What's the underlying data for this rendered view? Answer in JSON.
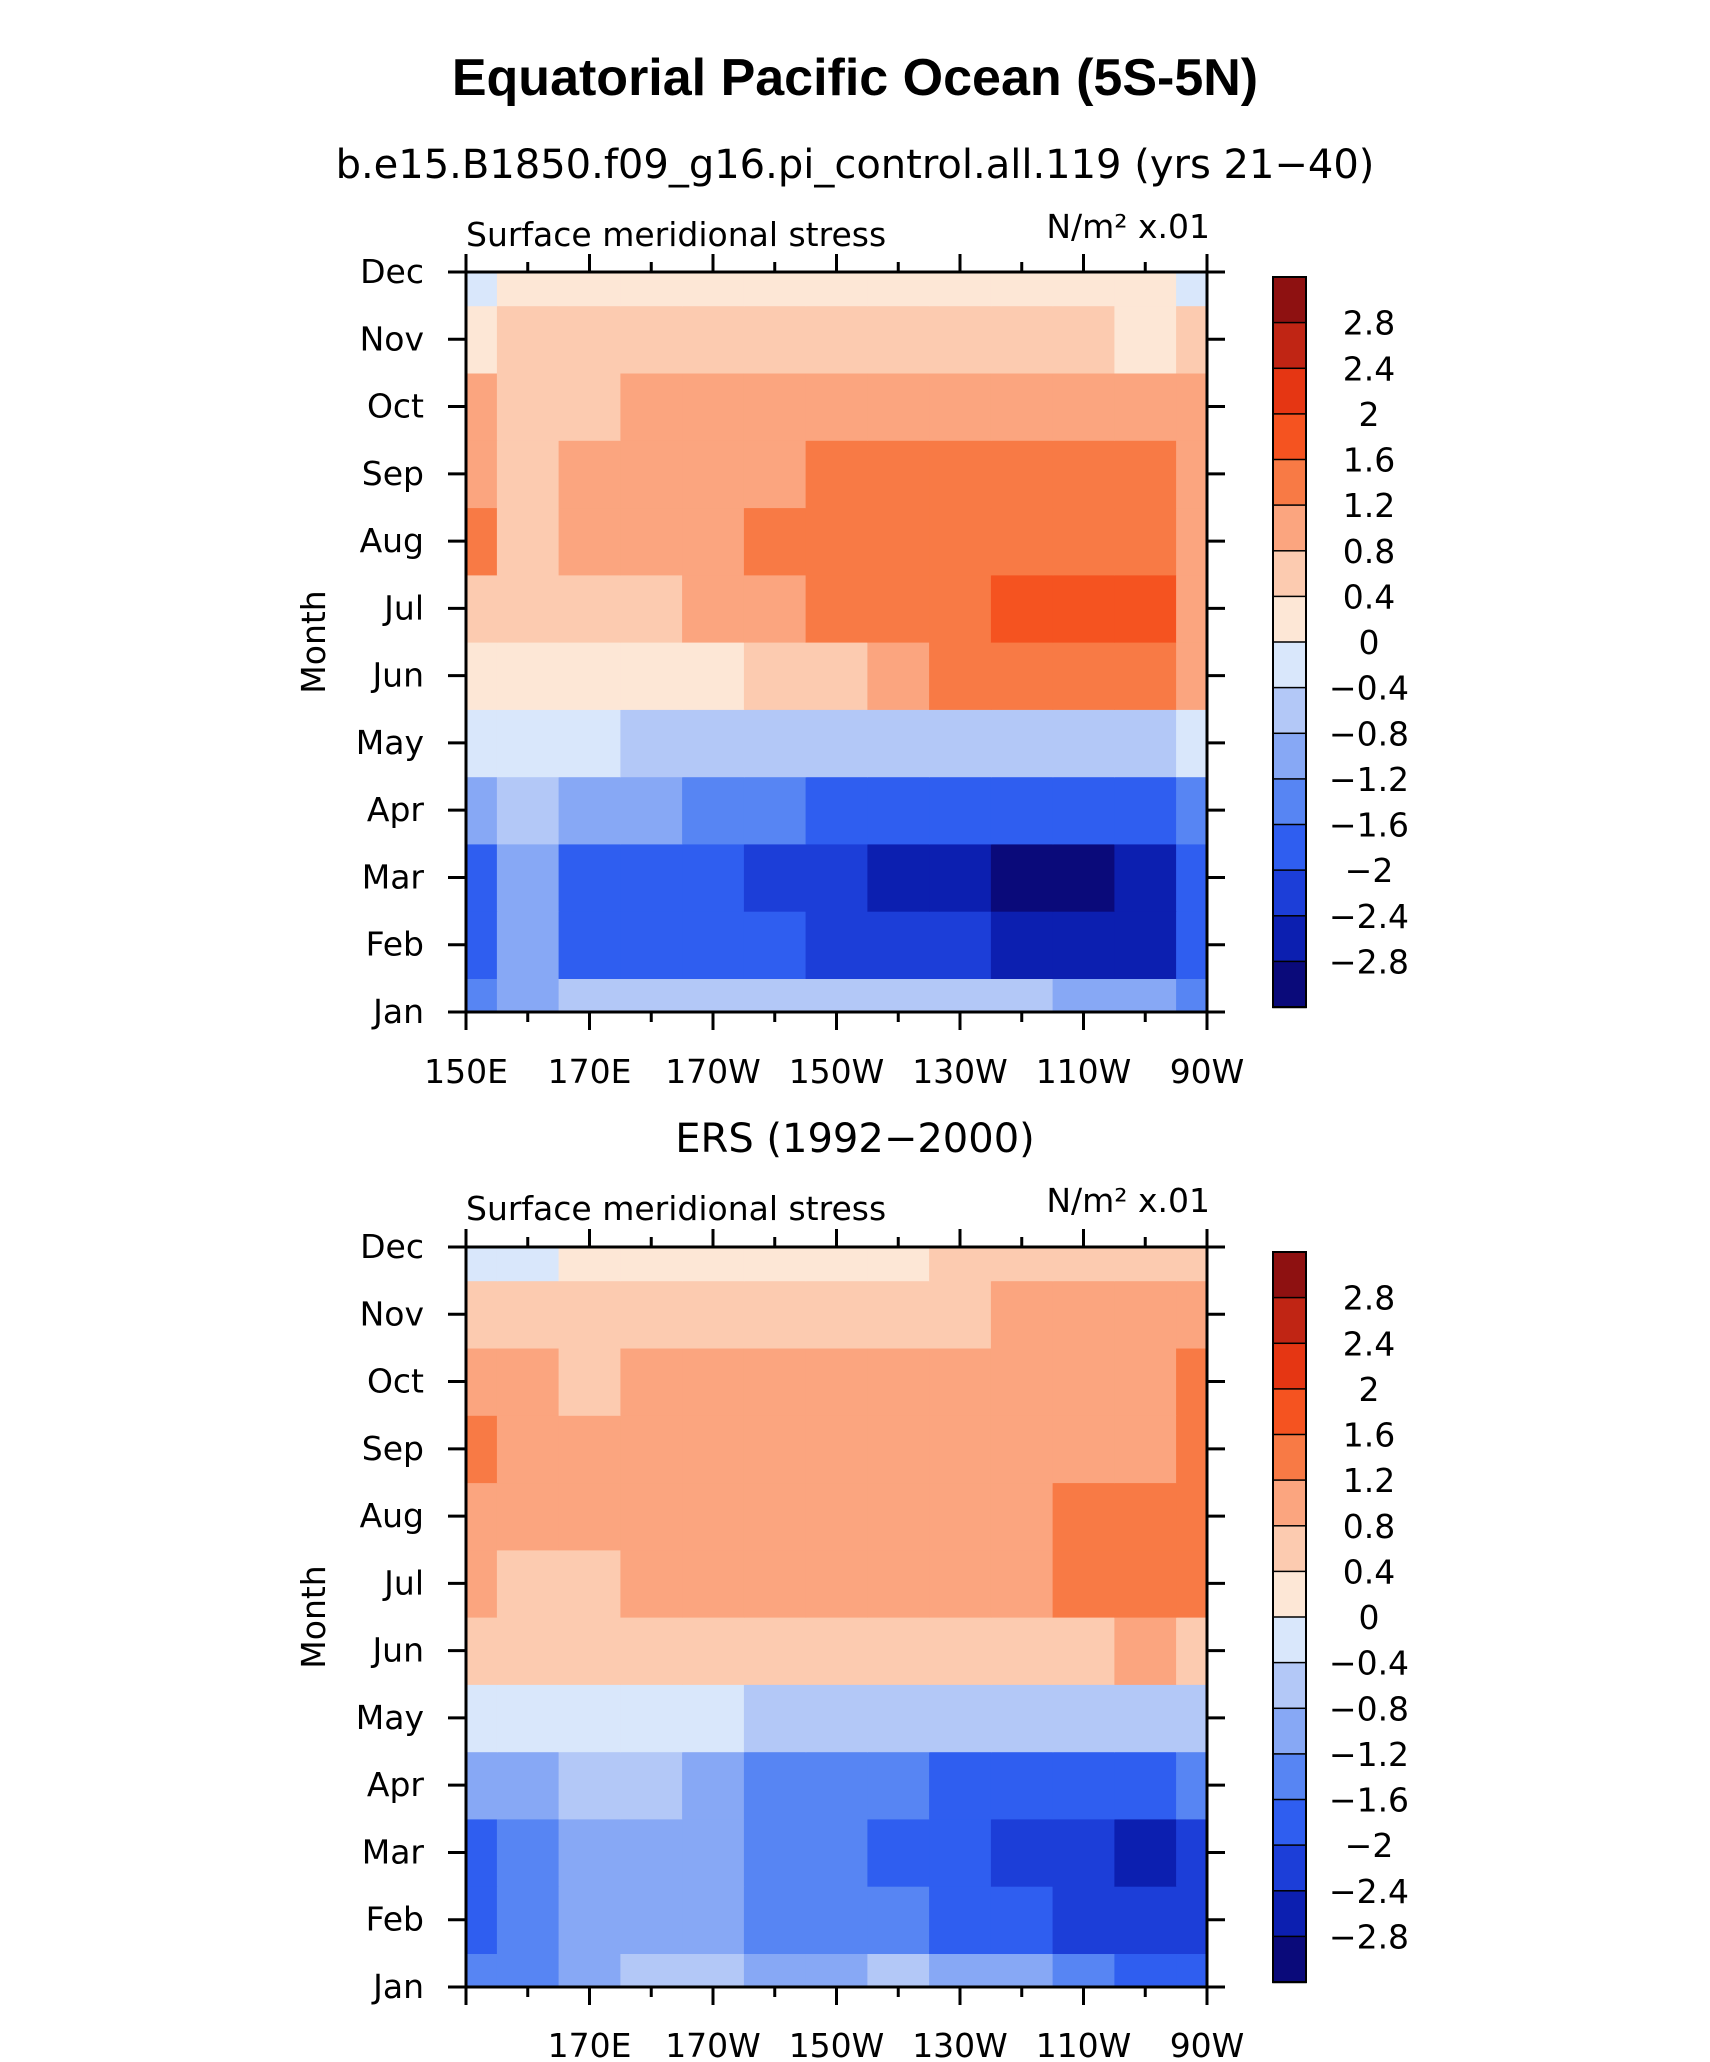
{
  "figure": {
    "title": "Equatorial Pacific Ocean (5S-5N)",
    "level_colors": [
      "#0a0a7a",
      "#0c1fb0",
      "#1c3ed8",
      "#2f5ef0",
      "#5785f3",
      "#87a8f5",
      "#b3c8f7",
      "#d9e7fb",
      "#fde7d6",
      "#fccbb0",
      "#fba57f",
      "#f87a45",
      "#f55320",
      "#e53613",
      "#c02514",
      "#8e1111"
    ],
    "colorbar_labels": [
      "2.8",
      "2.4",
      "2",
      "1.6",
      "1.2",
      "0.8",
      "0.4",
      "0",
      "−0.4",
      "−0.8",
      "−1.2",
      "−1.6",
      "−2",
      "−2.4",
      "−2.8"
    ]
  },
  "chart_data": [
    {
      "type": "heatmap",
      "title": "b.e15.B1850.f09_g16.pi_control.all.119 (yrs 21−40)",
      "left_label": "Surface meridional stress",
      "units_label": "N/m² x.01",
      "ylabel": "Month",
      "x_tick_labels": [
        "150E",
        "170E",
        "170W",
        "150W",
        "130W",
        "110W",
        "90W"
      ],
      "y_tick_labels": [
        "Jan",
        "Feb",
        "Mar",
        "Apr",
        "May",
        "Jun",
        "Jul",
        "Aug",
        "Sep",
        "Oct",
        "Nov",
        "Dec"
      ],
      "levels": [
        -2.8,
        -2.4,
        -2.0,
        -1.6,
        -1.2,
        -0.8,
        -0.4,
        0,
        0.4,
        0.8,
        1.2,
        1.6,
        2.0,
        2.4,
        2.8
      ],
      "x": [
        150,
        160,
        170,
        180,
        190,
        200,
        210,
        220,
        230,
        240,
        250,
        260,
        270
      ],
      "rows": [
        [
          -1.4,
          -0.9,
          -0.8,
          -0.7,
          -0.6,
          -0.6,
          -0.6,
          -0.6,
          -0.7,
          -0.8,
          -0.9,
          -1.0,
          -1.3
        ],
        [
          -1.7,
          -1.2,
          -1.7,
          -1.8,
          -1.9,
          -2.0,
          -2.1,
          -2.2,
          -2.4,
          -2.5,
          -2.6,
          -2.5,
          -1.7
        ],
        [
          -1.8,
          -1.2,
          -1.7,
          -1.8,
          -1.9,
          -2.1,
          -2.4,
          -2.6,
          -2.8,
          -3.0,
          -3.0,
          -2.6,
          -1.8
        ],
        [
          -1.0,
          -0.8,
          -0.9,
          -1.1,
          -1.3,
          -1.5,
          -1.7,
          -1.8,
          -1.9,
          -2.0,
          -1.9,
          -1.7,
          -1.3
        ],
        [
          -0.2,
          -0.3,
          -0.4,
          -0.5,
          -0.6,
          -0.7,
          -0.7,
          -0.7,
          -0.8,
          -0.7,
          -0.6,
          -0.5,
          -0.3
        ],
        [
          0.3,
          0.2,
          0.2,
          0.2,
          0.3,
          0.5,
          0.7,
          1.0,
          1.2,
          1.3,
          1.3,
          1.2,
          0.9
        ],
        [
          0.7,
          0.5,
          0.6,
          0.7,
          0.8,
          1.0,
          1.2,
          1.4,
          1.5,
          1.6,
          1.7,
          1.6,
          1.0
        ],
        [
          1.2,
          0.6,
          0.9,
          1.0,
          1.1,
          1.2,
          1.4,
          1.4,
          1.5,
          1.5,
          1.5,
          1.4,
          0.9
        ],
        [
          1.0,
          0.7,
          0.8,
          0.9,
          1.0,
          1.1,
          1.2,
          1.3,
          1.3,
          1.3,
          1.3,
          1.2,
          0.9
        ],
        [
          0.9,
          0.6,
          0.7,
          0.8,
          0.8,
          0.8,
          0.8,
          0.8,
          0.8,
          0.8,
          0.8,
          0.8,
          0.8
        ],
        [
          0.3,
          0.4,
          0.5,
          0.5,
          0.5,
          0.5,
          0.5,
          0.5,
          0.5,
          0.5,
          0.4,
          0.3,
          0.5
        ],
        [
          -0.1,
          0.2,
          0.3,
          0.3,
          0.3,
          0.3,
          0.3,
          0.3,
          0.3,
          0.3,
          0.2,
          0.1,
          -0.1
        ]
      ]
    },
    {
      "type": "heatmap",
      "title": "ERS (1992−2000)",
      "left_label": "Surface meridional stress",
      "units_label": "N/m² x.01",
      "ylabel": "Month",
      "x_tick_labels": [
        "170E",
        "170W",
        "150W",
        "130W",
        "110W",
        "90W"
      ],
      "y_tick_labels": [
        "Jan",
        "Feb",
        "Mar",
        "Apr",
        "May",
        "Jun",
        "Jul",
        "Aug",
        "Sep",
        "Oct",
        "Nov",
        "Dec"
      ],
      "levels": [
        -2.8,
        -2.4,
        -2.0,
        -1.6,
        -1.2,
        -0.8,
        -0.4,
        0,
        0.4,
        0.8,
        1.2,
        1.6,
        2.0,
        2.4,
        2.8
      ],
      "x": [
        150,
        160,
        170,
        180,
        190,
        200,
        210,
        220,
        230,
        240,
        250,
        260,
        270
      ],
      "rows": [
        [
          -1.5,
          -1.3,
          -1.0,
          -0.8,
          -0.8,
          -0.9,
          -0.9,
          -0.8,
          -1.0,
          -1.2,
          -1.5,
          -1.9,
          -2.0
        ],
        [
          -1.9,
          -1.5,
          -1.2,
          -1.1,
          -1.2,
          -1.3,
          -1.4,
          -1.5,
          -1.8,
          -2.0,
          -2.2,
          -2.4,
          -2.2
        ],
        [
          -2.0,
          -1.6,
          -1.2,
          -1.0,
          -1.1,
          -1.3,
          -1.4,
          -1.7,
          -2.0,
          -2.4,
          -2.2,
          -2.6,
          -2.3
        ],
        [
          -1.0,
          -0.9,
          -0.8,
          -0.8,
          -1.0,
          -1.3,
          -1.4,
          -1.6,
          -1.7,
          -1.7,
          -1.8,
          -1.8,
          -1.6
        ],
        [
          -0.4,
          -0.4,
          -0.3,
          -0.3,
          -0.4,
          -0.5,
          -0.5,
          -0.6,
          -0.6,
          -0.6,
          -0.7,
          -0.7,
          -0.5
        ],
        [
          0.5,
          0.4,
          0.4,
          0.5,
          0.5,
          0.6,
          0.5,
          0.5,
          0.4,
          0.4,
          0.6,
          0.8,
          0.6
        ],
        [
          0.8,
          0.7,
          0.7,
          0.8,
          0.9,
          1.0,
          0.9,
          0.9,
          0.8,
          0.9,
          1.2,
          1.4,
          1.3
        ],
        [
          1.0,
          0.9,
          0.8,
          0.9,
          1.0,
          1.0,
          1.0,
          1.0,
          1.0,
          1.0,
          1.2,
          1.3,
          1.3
        ],
        [
          1.3,
          1.0,
          0.8,
          0.9,
          1.1,
          1.1,
          1.0,
          1.0,
          0.9,
          0.8,
          0.9,
          1.0,
          1.3
        ],
        [
          0.9,
          0.8,
          0.7,
          0.8,
          0.9,
          1.0,
          0.9,
          0.9,
          0.8,
          0.8,
          0.8,
          0.9,
          1.3
        ],
        [
          0.6,
          0.5,
          0.5,
          0.6,
          0.6,
          0.6,
          0.5,
          0.5,
          0.6,
          0.8,
          0.9,
          0.8,
          1.0
        ],
        [
          -0.2,
          -0.1,
          0.0,
          0.1,
          0.1,
          0.2,
          0.2,
          0.2,
          0.4,
          0.6,
          0.6,
          0.5,
          0.4
        ]
      ]
    }
  ]
}
